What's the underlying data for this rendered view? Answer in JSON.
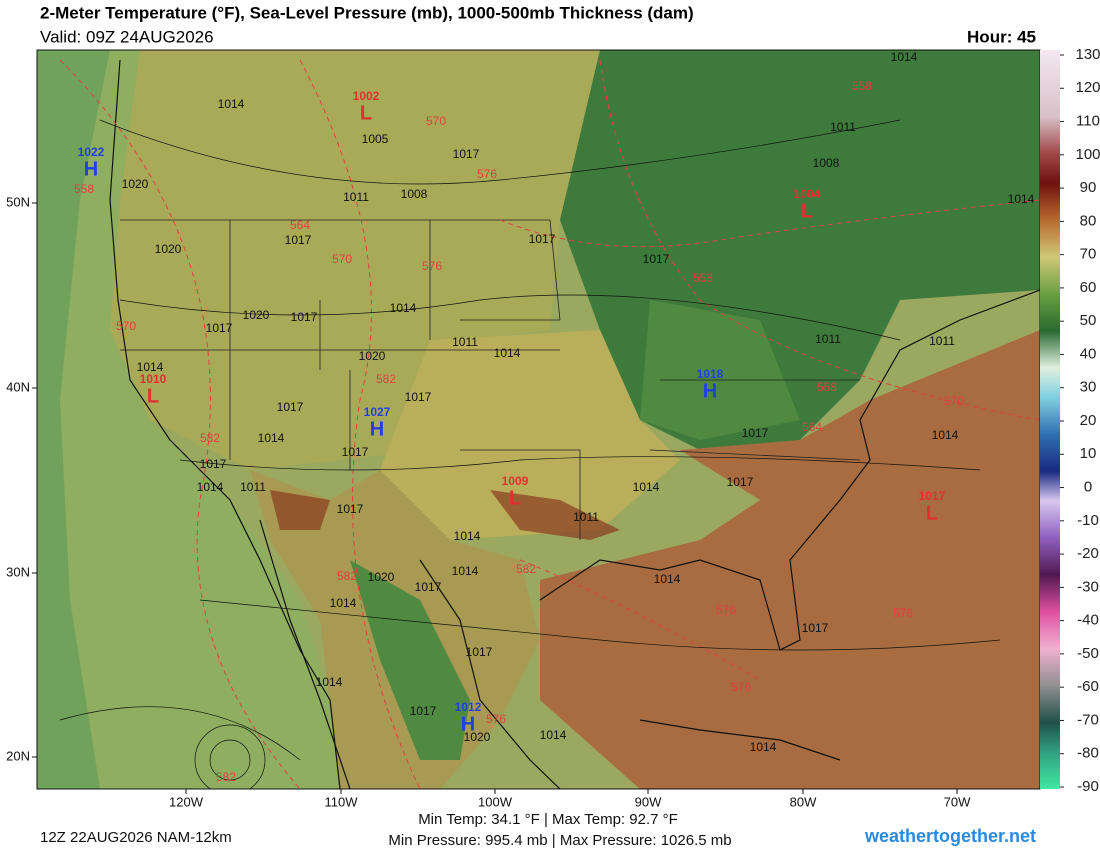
{
  "header": {
    "title": "2-Meter Temperature (°F), Sea-Level Pressure (mb), 1000-500mb Thickness (dam)",
    "valid": "Valid: 09Z 24AUG2026",
    "hour": "Hour: 45"
  },
  "colorbar": {
    "ticks": [
      130,
      120,
      110,
      100,
      90,
      80,
      70,
      60,
      50,
      40,
      30,
      20,
      10,
      0,
      -10,
      -20,
      -30,
      -40,
      -50,
      -60,
      -70,
      -80,
      -90
    ]
  },
  "axes": {
    "lon_labels": [
      "120W",
      "110W",
      "100W",
      "90W",
      "80W",
      "70W"
    ],
    "lat_labels": [
      "50N",
      "40N",
      "30N",
      "20N"
    ]
  },
  "pressure_centers": [
    {
      "letter": "H",
      "value": 1022
    },
    {
      "letter": "L",
      "value": 1002
    },
    {
      "letter": "L",
      "value": 1004
    },
    {
      "letter": "L",
      "value": 1010
    },
    {
      "letter": "H",
      "value": 1027
    },
    {
      "letter": "H",
      "value": 1018
    },
    {
      "letter": "L",
      "value": 1009
    },
    {
      "letter": "L",
      "value": 1017
    },
    {
      "letter": "H",
      "value": 1012
    }
  ],
  "isobar_labels": [
    1014,
    1005,
    1017,
    1020,
    1011,
    1008,
    1014,
    1011,
    1008,
    1014,
    1017,
    1020,
    1017,
    1017,
    1017,
    1020,
    1017,
    1014,
    1011,
    1014,
    1020,
    1014,
    1011,
    1011,
    1017,
    1017,
    1014,
    1017,
    1017,
    1014,
    1017,
    1014,
    1011,
    1014,
    1017,
    1017,
    1011,
    1014,
    1014,
    1020,
    1017,
    1014,
    1014,
    1017,
    1017,
    1017,
    1014,
    1020,
    1014,
    1014
  ],
  "thickness_labels": [
    558,
    564,
    570,
    576,
    570,
    576,
    558,
    558,
    570,
    582,
    558,
    564,
    570,
    582,
    582,
    582,
    576,
    576,
    576,
    576,
    582
  ],
  "footer": {
    "run": "12Z 22AUG2026 NAM-12km",
    "temps": "Min Temp:  34.1 °F | Max Temp:  92.7 °F",
    "pressures": "Min Pressure: 995.4 mb | Max Pressure: 1026.5 mb",
    "site": "weathertogether.net"
  }
}
